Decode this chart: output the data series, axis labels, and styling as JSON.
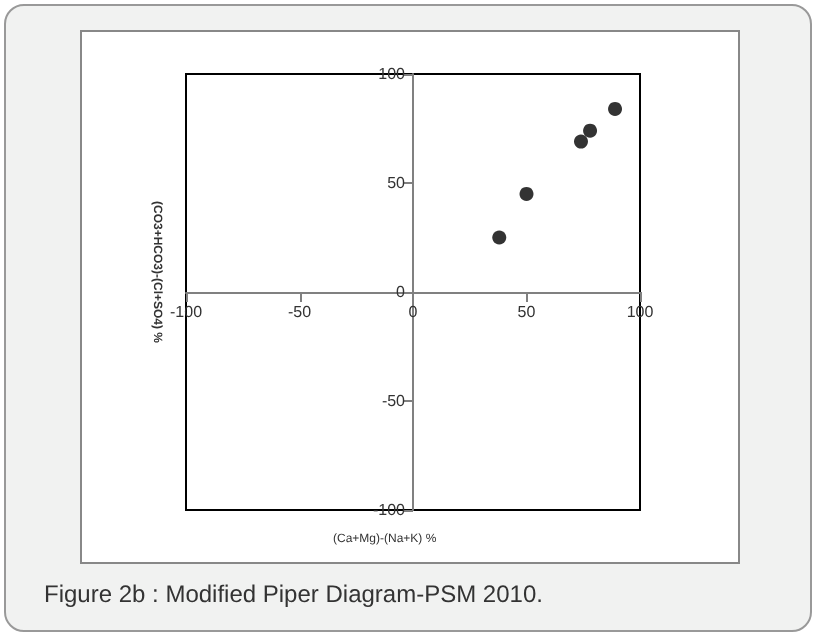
{
  "chart_data": {
    "type": "scatter",
    "xlabel": "(Ca+Mg)-(Na+K) %",
    "ylabel": "(CO3+HCO3)-(Cl+SO4) %",
    "annotations": [
      "Figure 2b : Modified Piper Diagram-PSM 2010."
    ],
    "x": [
      38,
      50,
      74,
      78,
      89
    ],
    "series": [
      {
        "color": "#000000",
        "values": [
          25,
          45,
          69,
          74,
          84
        ]
      }
    ],
    "xlim": [
      -100,
      100
    ],
    "xticks": [
      -100,
      -50,
      0,
      50,
      100
    ],
    "ylim": [
      -100,
      100
    ],
    "yticks": [
      -100,
      -50,
      0,
      50,
      100
    ],
    "grid": false,
    "marker": "circle"
  }
}
